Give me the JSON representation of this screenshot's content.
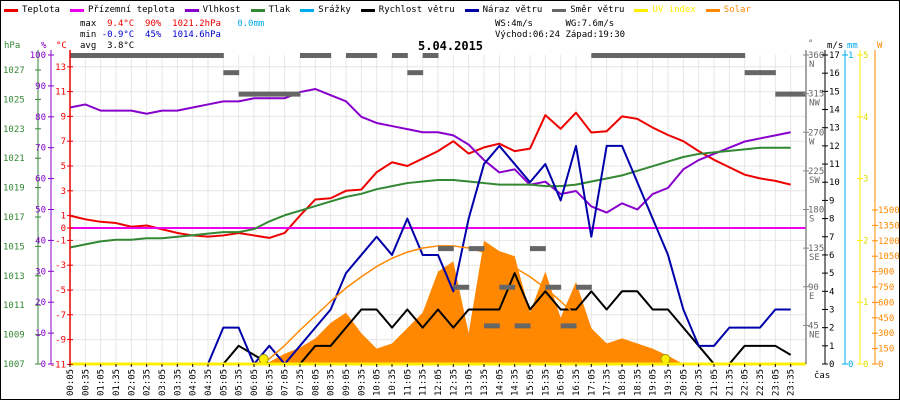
{
  "legend": [
    {
      "label": "Teplota",
      "color": "#ee0000"
    },
    {
      "label": "Přízemní teplota",
      "color": "#ee00ee"
    },
    {
      "label": "Vlhkost",
      "color": "#8800cc"
    },
    {
      "label": "Tlak",
      "color": "#338833"
    },
    {
      "label": "Srážky",
      "color": "#00aaee"
    },
    {
      "label": "Rychlost větru",
      "color": "#000000"
    },
    {
      "label": "Náraz větru",
      "color": "#0000aa"
    },
    {
      "label": "Směr větru",
      "color": "#666666"
    },
    {
      "label": "UV index",
      "color": "#ffee00"
    },
    {
      "label": "Solar",
      "color": "#ff8800"
    }
  ],
  "stats": {
    "max_label": "max",
    "max_temp": "9.4°C",
    "max_hum": "90%",
    "max_press": "1021.2hPa",
    "max_rain": "0.0mm",
    "min_label": "min",
    "min_temp": "-0.9°C",
    "min_hum": "45%",
    "min_press": "1014.6hPa",
    "avg_label": "avg",
    "avg_temp": "3.8°C",
    "ws": "WS:4m/s",
    "wg": "WG:7.6m/s",
    "sunrise": "Východ:06:24",
    "sunset": "Západ:19:30"
  },
  "title": "5.04.2015",
  "chart_data": {
    "type": "line",
    "title": "5.04.2015",
    "xlabel": "čas",
    "x": [
      "00:05",
      "00:35",
      "01:05",
      "01:35",
      "02:05",
      "02:35",
      "03:05",
      "03:35",
      "04:05",
      "04:35",
      "05:05",
      "05:35",
      "06:05",
      "06:35",
      "07:05",
      "07:35",
      "08:05",
      "08:35",
      "09:05",
      "09:35",
      "10:05",
      "10:35",
      "11:05",
      "11:35",
      "12:05",
      "12:35",
      "13:05",
      "13:35",
      "14:05",
      "14:35",
      "15:05",
      "15:35",
      "16:05",
      "16:35",
      "17:05",
      "17:35",
      "18:05",
      "18:35",
      "19:05",
      "19:35",
      "20:05",
      "20:35",
      "21:05",
      "21:35",
      "22:05",
      "22:35",
      "23:05",
      "23:35"
    ],
    "axes": {
      "pressure": {
        "label": "hPa",
        "range": [
          1007,
          1028
        ],
        "ticks": [
          "1007",
          "1009",
          "1011",
          "1013",
          "1015",
          "1017",
          "1019",
          "1021",
          "1023",
          "1025",
          "1027"
        ]
      },
      "humidity": {
        "label": "%",
        "range": [
          0,
          100
        ],
        "ticks": [
          "0",
          "10",
          "20",
          "30",
          "40",
          "50",
          "60",
          "70",
          "80",
          "90",
          "100"
        ]
      },
      "temperature": {
        "label": "°C",
        "range": [
          -11,
          14
        ],
        "ticks": [
          "-11",
          "-9",
          "-7",
          "-5",
          "-3",
          "-1",
          "0",
          "1",
          "3",
          "5",
          "7",
          "9",
          "11",
          "13"
        ]
      },
      "direction": {
        "label": "°",
        "range": [
          0,
          360
        ],
        "ticks": [
          {
            "v": "360",
            "d": "N"
          },
          {
            "v": "315",
            "d": "NW"
          },
          {
            "v": "270",
            "d": "W"
          },
          {
            "v": "225",
            "d": "SW"
          },
          {
            "v": "180",
            "d": "S"
          },
          {
            "v": "135",
            "d": "SE"
          },
          {
            "v": "90",
            "d": "E"
          },
          {
            "v": "45",
            "d": "NE"
          }
        ]
      },
      "wind": {
        "label": "m/s",
        "range": [
          0,
          17
        ],
        "ticks": [
          "0",
          "1",
          "2",
          "3",
          "4",
          "5",
          "6",
          "7",
          "8",
          "9",
          "10",
          "11",
          "12",
          "13",
          "14",
          "15",
          "16",
          "17"
        ]
      },
      "rain": {
        "label": "mm",
        "range": [
          0,
          1
        ],
        "ticks": [
          "0",
          "1"
        ]
      },
      "uv": {
        "label": "",
        "range": [
          0,
          5
        ],
        "ticks": [
          "0",
          "1",
          "2",
          "3",
          "4",
          "5"
        ]
      },
      "solar": {
        "label": "W",
        "range": [
          0,
          1500
        ],
        "ticks": [
          "0",
          "150",
          "300",
          "450",
          "600",
          "750",
          "900",
          "1050",
          "1200",
          "1350",
          "1500"
        ]
      }
    },
    "series": [
      {
        "name": "Teplota",
        "axis": "temperature",
        "values": [
          1.0,
          0.7,
          0.5,
          0.4,
          0.1,
          0.2,
          -0.1,
          -0.4,
          -0.6,
          -0.7,
          -0.6,
          -0.4,
          -0.6,
          -0.8,
          -0.4,
          1.0,
          2.3,
          2.4,
          3.0,
          3.1,
          4.5,
          5.3,
          5.0,
          5.6,
          6.2,
          7.0,
          6.0,
          6.5,
          6.8,
          6.2,
          6.4,
          9.1,
          8.0,
          9.3,
          7.7,
          7.8,
          9.0,
          8.8,
          8.1,
          7.5,
          7.0,
          6.2,
          5.5,
          4.9,
          4.3,
          4.0,
          3.8,
          3.5
        ]
      },
      {
        "name": "Přízemní teplota",
        "axis": "temperature",
        "values": [
          0,
          0,
          0,
          0,
          0,
          0,
          0,
          0,
          0,
          0,
          0,
          0,
          0,
          0,
          0,
          0,
          0,
          0,
          0,
          0,
          0,
          0,
          0,
          0,
          0,
          0,
          0,
          0,
          0,
          0,
          0,
          0,
          0,
          0,
          0,
          0,
          0,
          0,
          0,
          0,
          0,
          0,
          0,
          0,
          0,
          0,
          0,
          0
        ]
      },
      {
        "name": "Vlhkost",
        "axis": "humidity",
        "values": [
          83,
          84,
          82,
          82,
          82,
          81,
          82,
          82,
          83,
          84,
          85,
          85,
          86,
          86,
          86,
          88,
          89,
          87,
          85,
          80,
          78,
          77,
          76,
          75,
          75,
          74,
          71,
          66,
          62,
          63,
          58,
          59,
          55,
          56,
          51,
          49,
          52,
          50,
          55,
          57,
          63,
          66,
          68,
          70,
          72,
          73,
          74,
          75
        ]
      },
      {
        "name": "Tlak",
        "axis": "pressure",
        "values": [
          1014.6,
          1014.8,
          1015.0,
          1015.1,
          1015.1,
          1015.2,
          1015.2,
          1015.3,
          1015.4,
          1015.5,
          1015.6,
          1015.6,
          1015.8,
          1016.3,
          1016.7,
          1017.0,
          1017.3,
          1017.6,
          1017.9,
          1018.1,
          1018.4,
          1018.6,
          1018.8,
          1018.9,
          1019.0,
          1019.0,
          1018.9,
          1018.8,
          1018.7,
          1018.7,
          1018.7,
          1018.6,
          1018.6,
          1018.7,
          1018.9,
          1019.1,
          1019.3,
          1019.6,
          1019.9,
          1020.2,
          1020.5,
          1020.7,
          1020.8,
          1020.9,
          1021.0,
          1021.1,
          1021.1,
          1021.1
        ]
      },
      {
        "name": "Srážky",
        "axis": "rain",
        "values": [
          0,
          0,
          0,
          0,
          0,
          0,
          0,
          0,
          0,
          0,
          0,
          0,
          0,
          0,
          0,
          0,
          0,
          0,
          0,
          0,
          0,
          0,
          0,
          0,
          0,
          0,
          0,
          0,
          0,
          0,
          0,
          0,
          0,
          0,
          0,
          0,
          0,
          0,
          0,
          0,
          0,
          0,
          0,
          0,
          0,
          0,
          0,
          0
        ]
      },
      {
        "name": "Rychlost větru",
        "axis": "wind",
        "values": [
          0,
          0,
          0,
          0,
          0,
          0,
          0,
          0,
          0,
          0,
          0,
          1,
          0.5,
          0,
          0,
          0,
          1,
          1,
          2,
          3,
          3,
          2,
          3,
          2,
          3,
          2,
          3,
          3,
          3,
          5,
          3,
          4,
          3,
          3,
          4,
          3,
          4,
          4,
          3,
          3,
          2,
          1,
          0,
          0,
          1,
          1,
          1,
          0.5
        ]
      },
      {
        "name": "Náraz větru",
        "axis": "wind",
        "values": [
          0,
          0,
          0,
          0,
          0,
          0,
          0,
          0,
          0,
          0,
          2,
          2,
          0,
          1,
          0,
          1,
          2,
          3,
          5,
          6,
          7,
          6,
          8,
          6,
          6,
          4,
          8,
          11,
          12,
          11,
          10,
          11,
          9,
          12,
          7,
          12,
          12,
          10,
          8,
          6,
          3,
          1,
          1,
          2,
          2,
          2,
          3,
          3
        ]
      },
      {
        "name": "UV index",
        "axis": "uv",
        "values": [
          0,
          0,
          0,
          0,
          0,
          0,
          0,
          0,
          0,
          0,
          0,
          0,
          0,
          0,
          0,
          0,
          0,
          0,
          0,
          0,
          0,
          0,
          0,
          0,
          0,
          0,
          0,
          0,
          0,
          0,
          0,
          0,
          0,
          0,
          0,
          0,
          0,
          0,
          0,
          0,
          0,
          0,
          0,
          0,
          0,
          0,
          0,
          0
        ]
      },
      {
        "name": "Solar",
        "axis": "solar",
        "values": [
          0,
          0,
          0,
          0,
          0,
          0,
          0,
          0,
          0,
          0,
          0,
          0,
          0,
          20,
          100,
          160,
          250,
          400,
          500,
          300,
          150,
          200,
          350,
          500,
          900,
          1000,
          300,
          1200,
          1100,
          1050,
          500,
          900,
          450,
          800,
          350,
          200,
          250,
          200,
          150,
          80,
          0,
          0,
          0,
          0,
          0,
          0,
          0,
          0
        ]
      },
      {
        "name": "Solar (theoretical)",
        "axis": "solar",
        "values": [
          0,
          0,
          0,
          0,
          0,
          0,
          0,
          0,
          0,
          0,
          0,
          0,
          0,
          50,
          180,
          330,
          470,
          610,
          740,
          850,
          950,
          1030,
          1090,
          1130,
          1150,
          1150,
          1130,
          1090,
          1020,
          940,
          850,
          740,
          610,
          470,
          330,
          190,
          60,
          0,
          0,
          0,
          0,
          0,
          0,
          0,
          0,
          0,
          0,
          0
        ]
      },
      {
        "name": "Směr větru",
        "axis": "direction",
        "values": [
          360,
          360,
          360,
          360,
          360,
          360,
          360,
          360,
          360,
          360,
          340,
          315,
          315,
          315,
          315,
          360,
          360,
          null,
          360,
          360,
          null,
          360,
          340,
          360,
          135,
          90,
          135,
          45,
          90,
          45,
          135,
          90,
          45,
          90,
          360,
          360,
          360,
          360,
          360,
          360,
          360,
          360,
          360,
          360,
          340,
          340,
          315,
          315
        ]
      }
    ],
    "markers": [
      {
        "name": "sunrise",
        "time": "06:24"
      },
      {
        "name": "sunset",
        "time": "19:30"
      }
    ],
    "grid": true,
    "legend_position": "top"
  }
}
